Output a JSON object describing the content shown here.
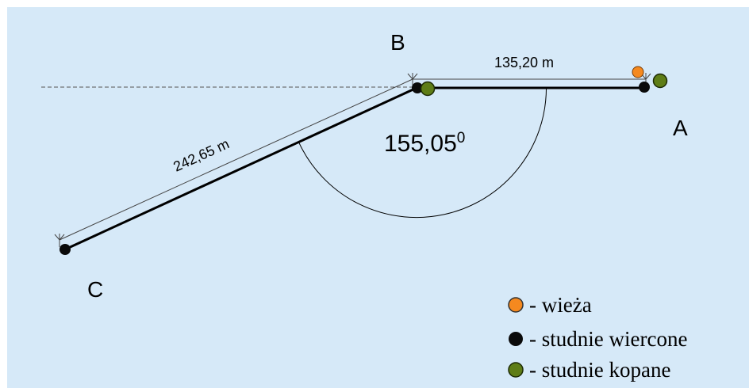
{
  "points": {
    "a": "A",
    "b": "B",
    "c": "C"
  },
  "dimensions": {
    "ab": "135,20 m",
    "bc": "242,65 m"
  },
  "angle": {
    "value": "155,05",
    "unit": "0"
  },
  "legend": [
    {
      "color": "#f5891f",
      "label": "- wieża"
    },
    {
      "color": "#0a0a0a",
      "label": "- studnie wiercone"
    },
    {
      "color": "#5e7d16",
      "label": "- studnie kopane"
    }
  ],
  "colors": {
    "background": "#d6e9f8",
    "tower": "#f5891f",
    "drilled_well": "#0a0a0a",
    "dug_well": "#5e7d16"
  }
}
